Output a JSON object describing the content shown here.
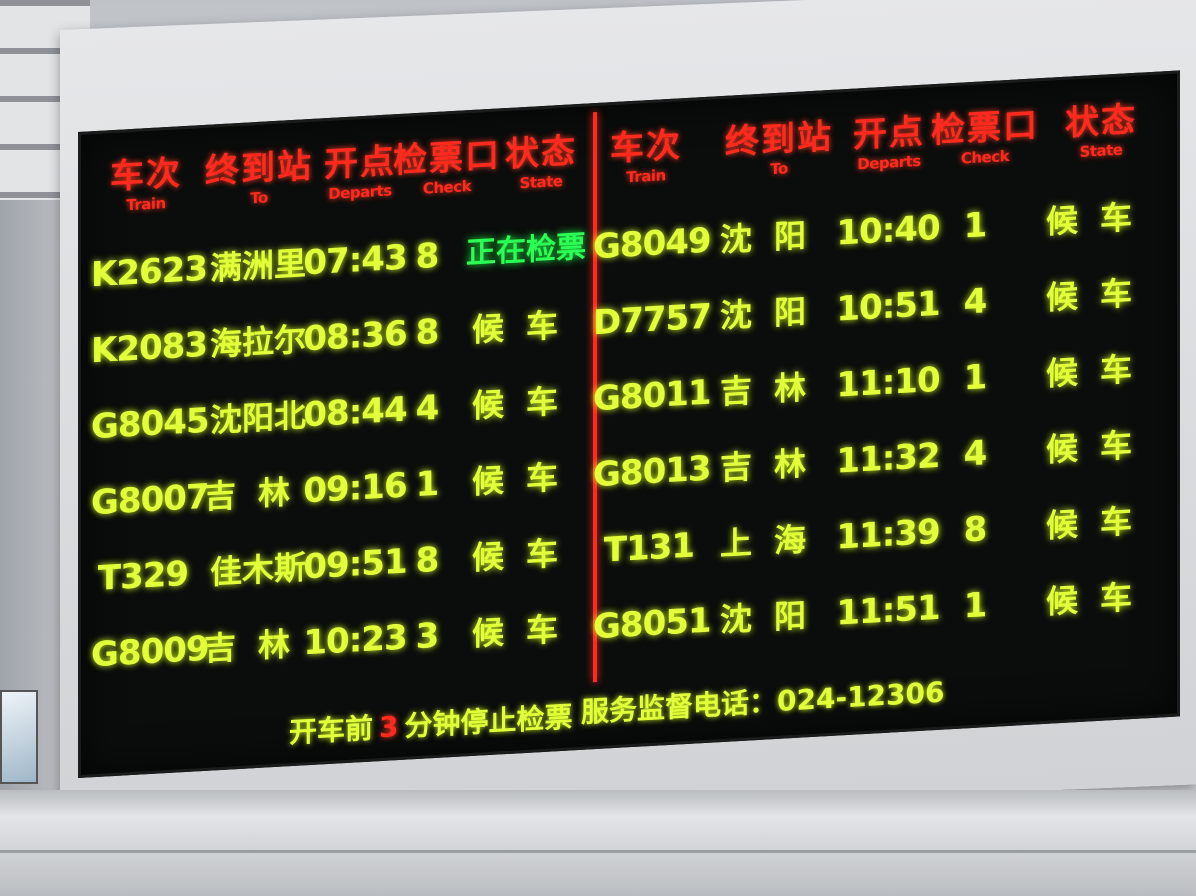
{
  "board": {
    "headers": {
      "train_zh": "车次",
      "train_en": "Train",
      "to_zh": "终到站",
      "to_en": "To",
      "departs_zh": "开点",
      "departs_en": "Departs",
      "check_zh": "检票口",
      "check_en": "Check",
      "state_zh": "状态",
      "state_en": "State"
    },
    "left_rows": [
      {
        "train": "K2623",
        "to": "满洲里",
        "departs": "07:43",
        "check": "8",
        "state": "正在检票",
        "active": true
      },
      {
        "train": "K2083",
        "to": "海拉尔",
        "departs": "08:36",
        "check": "8",
        "state": "候车",
        "active": false
      },
      {
        "train": "G8045",
        "to": "沈阳北",
        "departs": "08:44",
        "check": "4",
        "state": "候车",
        "active": false
      },
      {
        "train": "G8007",
        "to": "吉林",
        "departs": "09:16",
        "check": "1",
        "state": "候车",
        "active": false
      },
      {
        "train": "T329",
        "to": "佳木斯",
        "departs": "09:51",
        "check": "8",
        "state": "候车",
        "active": false
      },
      {
        "train": "G8009",
        "to": "吉林",
        "departs": "10:23",
        "check": "3",
        "state": "候车",
        "active": false
      }
    ],
    "right_rows": [
      {
        "train": "G8049",
        "to": "沈阳",
        "departs": "10:40",
        "check": "1",
        "state": "候车",
        "active": false
      },
      {
        "train": "D7757",
        "to": "沈阳",
        "departs": "10:51",
        "check": "4",
        "state": "候车",
        "active": false
      },
      {
        "train": "G8011",
        "to": "吉林",
        "departs": "11:10",
        "check": "1",
        "state": "候车",
        "active": false
      },
      {
        "train": "G8013",
        "to": "吉林",
        "departs": "11:32",
        "check": "4",
        "state": "候车",
        "active": false
      },
      {
        "train": "T131",
        "to": "上海",
        "departs": "11:39",
        "check": "8",
        "state": "候车",
        "active": false
      },
      {
        "train": "G8051",
        "to": "沈阳",
        "departs": "11:51",
        "check": "1",
        "state": "候车",
        "active": false
      }
    ],
    "footer": {
      "note_prefix": "开车前",
      "note_minutes": "3",
      "note_suffix": "分钟停止检票",
      "hotline": "服务监督电话：024-12306"
    }
  },
  "colors": {
    "led_red": "#ff2a1e",
    "led_yellow": "#e3ff3a",
    "led_green": "#2bff55",
    "panel": "#0b0d0c"
  }
}
